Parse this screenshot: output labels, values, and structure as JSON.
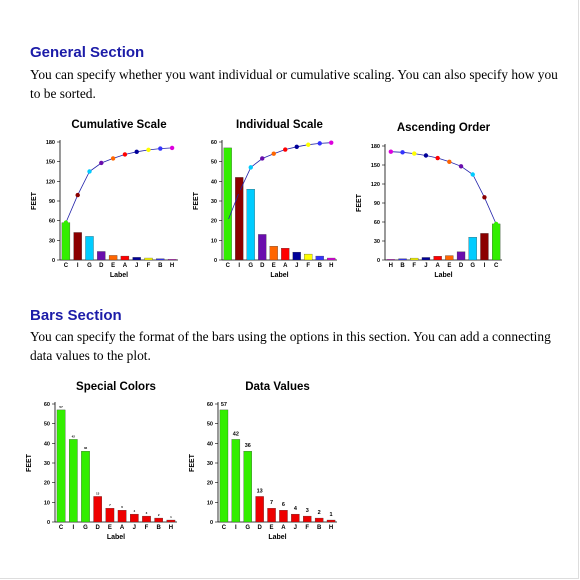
{
  "sections": [
    {
      "heading": "General Section",
      "text": "You can specify whether you want individual or cumulative scaling. You can also specify how you to be sorted."
    },
    {
      "heading": "Bars Section",
      "text": "You can specify the format of the bars using the options in this section. You can add a connecting data values to the plot."
    }
  ],
  "chart_data": [
    {
      "type": "combo",
      "title": "Cumulative Scale",
      "x_label": "Label",
      "y_label": "FEET",
      "categories": [
        "C",
        "I",
        "G",
        "D",
        "E",
        "A",
        "J",
        "F",
        "B",
        "H"
      ],
      "ylim": [
        0,
        180
      ],
      "yticks": [
        0,
        30,
        60,
        90,
        120,
        150,
        180
      ],
      "series": [
        {
          "type": "bar",
          "values": [
            57,
            42,
            36,
            13,
            7,
            6,
            4,
            3,
            2,
            1
          ],
          "colors": [
            "#33ee00",
            "#8b0000",
            "#00ccff",
            "#6a0dad",
            "#ff6600",
            "#ff0000",
            "#000099",
            "#ffff00",
            "#3333ff",
            "#dd00dd"
          ]
        },
        {
          "type": "line",
          "color": "#2222aa",
          "values": [
            57,
            99,
            135,
            148,
            155,
            161,
            165,
            168,
            170,
            171
          ],
          "colors": [
            "#33ee00",
            "#8b0000",
            "#00ccff",
            "#6a0dad",
            "#ff6600",
            "#ff0000",
            "#000099",
            "#ffff00",
            "#3333ff",
            "#dd00dd"
          ]
        }
      ]
    },
    {
      "type": "combo",
      "title": "Individual Scale",
      "x_label": "Label",
      "y_label": "FEET",
      "categories": [
        "C",
        "I",
        "G",
        "D",
        "E",
        "A",
        "J",
        "F",
        "B",
        "H"
      ],
      "ylim": [
        0,
        60
      ],
      "yticks": [
        0,
        10,
        20,
        30,
        40,
        50,
        60
      ],
      "y2lim": [
        0,
        172
      ],
      "series": [
        {
          "type": "bar",
          "values": [
            57,
            42,
            36,
            13,
            7,
            6,
            4,
            3,
            2,
            1
          ],
          "colors": [
            "#33ee00",
            "#8b0000",
            "#00ccff",
            "#6a0dad",
            "#ff6600",
            "#ff0000",
            "#000099",
            "#ffff00",
            "#3333ff",
            "#dd00dd"
          ]
        },
        {
          "type": "line",
          "axis": "y2",
          "color": "#2222aa",
          "values": [
            57,
            99,
            135,
            148,
            155,
            161,
            165,
            168,
            170,
            171
          ],
          "colors": [
            "#33ee00",
            "#8b0000",
            "#00ccff",
            "#6a0dad",
            "#ff6600",
            "#ff0000",
            "#000099",
            "#ffff00",
            "#3333ff",
            "#dd00dd"
          ]
        }
      ]
    },
    {
      "type": "combo",
      "title": "Ascending Order",
      "x_label": "Label",
      "y_label": "FEET",
      "categories": [
        "H",
        "B",
        "F",
        "J",
        "A",
        "E",
        "D",
        "G",
        "I",
        "C"
      ],
      "ylim": [
        0,
        180
      ],
      "yticks": [
        0,
        30,
        60,
        90,
        120,
        150,
        180
      ],
      "series": [
        {
          "type": "bar",
          "values": [
            1,
            2,
            3,
            4,
            6,
            7,
            13,
            36,
            42,
            57
          ],
          "colors": [
            "#dd00dd",
            "#3333ff",
            "#ffff00",
            "#000099",
            "#ff0000",
            "#ff6600",
            "#6a0dad",
            "#00ccff",
            "#8b0000",
            "#33ee00"
          ]
        },
        {
          "type": "line",
          "color": "#2222aa",
          "values": [
            171,
            170,
            168,
            165,
            161,
            155,
            148,
            135,
            99,
            57
          ],
          "colors": [
            "#dd00dd",
            "#3333ff",
            "#ffff00",
            "#000099",
            "#ff0000",
            "#ff6600",
            "#6a0dad",
            "#00ccff",
            "#8b0000",
            "#33ee00"
          ]
        }
      ]
    },
    {
      "type": "bar",
      "title": "Special Colors",
      "x_label": "Label",
      "y_label": "FEET",
      "categories": [
        "C",
        "I",
        "G",
        "D",
        "E",
        "A",
        "J",
        "F",
        "B",
        "H"
      ],
      "ylim": [
        0,
        60
      ],
      "yticks": [
        0,
        10,
        20,
        30,
        40,
        50,
        60
      ],
      "data_labels": "tiny",
      "series": [
        {
          "type": "bar",
          "values": [
            57,
            42,
            36,
            13,
            7,
            6,
            4,
            3,
            2,
            1
          ],
          "colors": [
            "#33ee00",
            "#33ee00",
            "#33ee00",
            "#ee0000",
            "#ee0000",
            "#ee0000",
            "#ee0000",
            "#ee0000",
            "#ee0000",
            "#ee0000"
          ]
        }
      ]
    },
    {
      "type": "bar",
      "title": "Data Values",
      "x_label": "Label",
      "y_label": "FEET",
      "categories": [
        "C",
        "I",
        "G",
        "D",
        "E",
        "A",
        "J",
        "F",
        "B",
        "H"
      ],
      "ylim": [
        0,
        60
      ],
      "yticks": [
        0,
        10,
        20,
        30,
        40,
        50,
        60
      ],
      "data_labels": "normal",
      "series": [
        {
          "type": "bar",
          "values": [
            57,
            42,
            36,
            13,
            7,
            6,
            4,
            3,
            2,
            1
          ],
          "colors": [
            "#33ee00",
            "#33ee00",
            "#33ee00",
            "#ee0000",
            "#ee0000",
            "#ee0000",
            "#ee0000",
            "#ee0000",
            "#ee0000",
            "#ee0000"
          ]
        }
      ]
    }
  ]
}
